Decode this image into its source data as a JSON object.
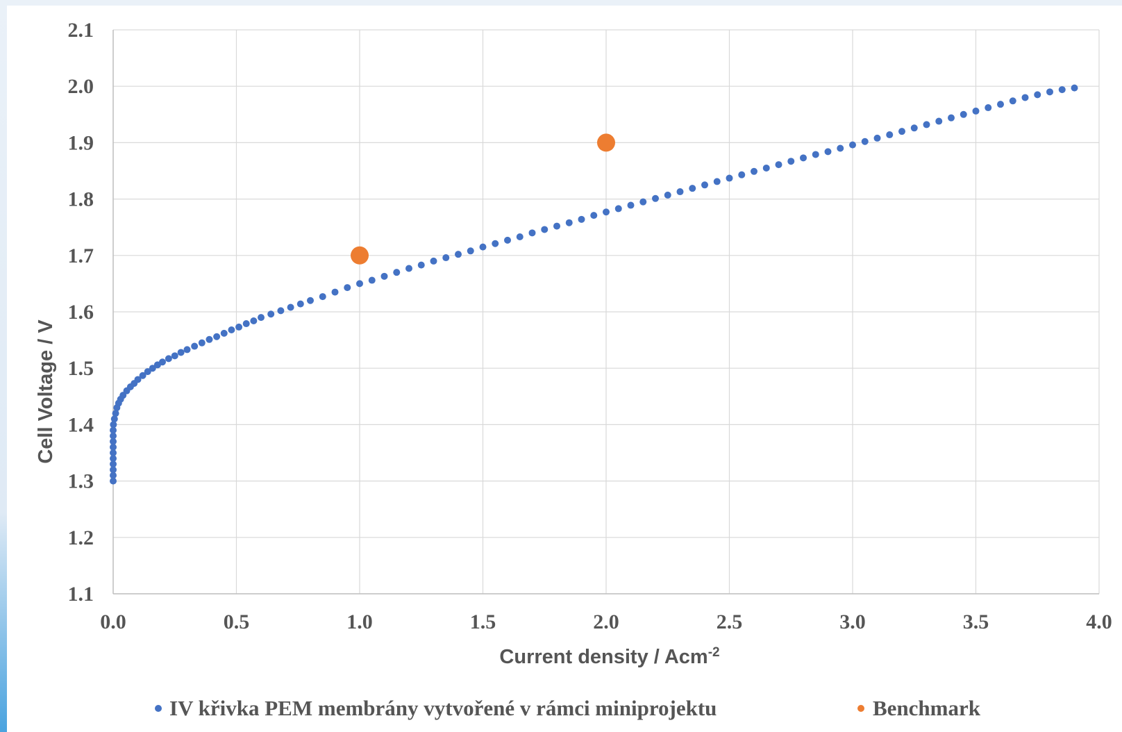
{
  "chart_data": {
    "type": "scatter",
    "xlabel": "Current density / Acm",
    "xlabel_sup": "-2",
    "ylabel": "Cell Voltage / V",
    "xlim": [
      0.0,
      4.0
    ],
    "ylim": [
      1.1,
      2.1
    ],
    "x_ticks": [
      "0.0",
      "0.5",
      "1.0",
      "1.5",
      "2.0",
      "2.5",
      "3.0",
      "3.5",
      "4.0"
    ],
    "y_ticks": [
      "1.1",
      "1.2",
      "1.3",
      "1.4",
      "1.5",
      "1.6",
      "1.7",
      "1.8",
      "1.9",
      "2.0",
      "2.1"
    ],
    "grid": true,
    "legend_position": "bottom",
    "series": [
      {
        "name": "IV křivka PEM membrány vytvořené v rámci miniprojektu",
        "color": "#4472c4",
        "points": [
          [
            0.0,
            1.3
          ],
          [
            0.0,
            1.31
          ],
          [
            0.0,
            1.32
          ],
          [
            0.0,
            1.33
          ],
          [
            0.0,
            1.34
          ],
          [
            0.0,
            1.35
          ],
          [
            0.0,
            1.36
          ],
          [
            0.0,
            1.37
          ],
          [
            0.0,
            1.38
          ],
          [
            0.0,
            1.39
          ],
          [
            0.001,
            1.4
          ],
          [
            0.005,
            1.41
          ],
          [
            0.01,
            1.42
          ],
          [
            0.015,
            1.43
          ],
          [
            0.022,
            1.438
          ],
          [
            0.03,
            1.445
          ],
          [
            0.04,
            1.452
          ],
          [
            0.055,
            1.46
          ],
          [
            0.07,
            1.467
          ],
          [
            0.085,
            1.473
          ],
          [
            0.1,
            1.48
          ],
          [
            0.12,
            1.487
          ],
          [
            0.14,
            1.494
          ],
          [
            0.16,
            1.5
          ],
          [
            0.18,
            1.506
          ],
          [
            0.2,
            1.511
          ],
          [
            0.225,
            1.517
          ],
          [
            0.25,
            1.522
          ],
          [
            0.275,
            1.528
          ],
          [
            0.3,
            1.533
          ],
          [
            0.33,
            1.539
          ],
          [
            0.36,
            1.545
          ],
          [
            0.39,
            1.551
          ],
          [
            0.42,
            1.556
          ],
          [
            0.45,
            1.562
          ],
          [
            0.48,
            1.568
          ],
          [
            0.51,
            1.573
          ],
          [
            0.54,
            1.579
          ],
          [
            0.57,
            1.584
          ],
          [
            0.6,
            1.59
          ],
          [
            0.64,
            1.596
          ],
          [
            0.68,
            1.602
          ],
          [
            0.72,
            1.608
          ],
          [
            0.76,
            1.614
          ],
          [
            0.8,
            1.62
          ],
          [
            0.85,
            1.627
          ],
          [
            0.9,
            1.635
          ],
          [
            0.95,
            1.643
          ],
          [
            1.0,
            1.65
          ],
          [
            1.05,
            1.656
          ],
          [
            1.1,
            1.663
          ],
          [
            1.15,
            1.67
          ],
          [
            1.2,
            1.677
          ],
          [
            1.25,
            1.683
          ],
          [
            1.3,
            1.69
          ],
          [
            1.35,
            1.696
          ],
          [
            1.4,
            1.702
          ],
          [
            1.45,
            1.708
          ],
          [
            1.5,
            1.715
          ],
          [
            1.55,
            1.721
          ],
          [
            1.6,
            1.727
          ],
          [
            1.65,
            1.733
          ],
          [
            1.7,
            1.74
          ],
          [
            1.75,
            1.746
          ],
          [
            1.8,
            1.752
          ],
          [
            1.85,
            1.758
          ],
          [
            1.9,
            1.764
          ],
          [
            1.95,
            1.771
          ],
          [
            2.0,
            1.777
          ],
          [
            2.05,
            1.783
          ],
          [
            2.1,
            1.789
          ],
          [
            2.15,
            1.795
          ],
          [
            2.2,
            1.801
          ],
          [
            2.25,
            1.807
          ],
          [
            2.3,
            1.813
          ],
          [
            2.35,
            1.819
          ],
          [
            2.4,
            1.825
          ],
          [
            2.45,
            1.831
          ],
          [
            2.5,
            1.837
          ],
          [
            2.55,
            1.843
          ],
          [
            2.6,
            1.849
          ],
          [
            2.65,
            1.855
          ],
          [
            2.7,
            1.861
          ],
          [
            2.75,
            1.867
          ],
          [
            2.8,
            1.873
          ],
          [
            2.85,
            1.879
          ],
          [
            2.9,
            1.884
          ],
          [
            2.95,
            1.89
          ],
          [
            3.0,
            1.896
          ],
          [
            3.05,
            1.902
          ],
          [
            3.1,
            1.908
          ],
          [
            3.15,
            1.914
          ],
          [
            3.2,
            1.92
          ],
          [
            3.25,
            1.926
          ],
          [
            3.3,
            1.932
          ],
          [
            3.35,
            1.938
          ],
          [
            3.4,
            1.944
          ],
          [
            3.45,
            1.95
          ],
          [
            3.5,
            1.956
          ],
          [
            3.55,
            1.962
          ],
          [
            3.6,
            1.968
          ],
          [
            3.65,
            1.974
          ],
          [
            3.7,
            1.98
          ],
          [
            3.75,
            1.985
          ],
          [
            3.8,
            1.99
          ],
          [
            3.85,
            1.994
          ],
          [
            3.9,
            1.997
          ]
        ]
      },
      {
        "name": "Benchmark",
        "color": "#ed7d31",
        "points": [
          [
            1.0,
            1.7
          ],
          [
            2.0,
            1.9
          ]
        ]
      }
    ]
  }
}
